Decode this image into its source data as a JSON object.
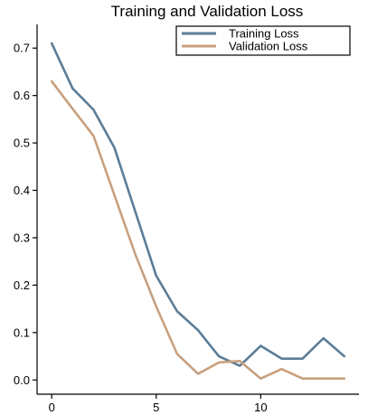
{
  "chart_data": {
    "type": "line",
    "title": "Training and Validation Loss",
    "xlabel": "",
    "ylabel": "",
    "xlim": [
      -0.7,
      14.7
    ],
    "ylim": [
      -0.03,
      0.75
    ],
    "x_ticks": [
      0,
      5,
      10
    ],
    "y_ticks": [
      0.0,
      0.1,
      0.2,
      0.3,
      0.4,
      0.5,
      0.6,
      0.7
    ],
    "grid": false,
    "legend_position": "top-right",
    "x": [
      0,
      1,
      2,
      3,
      4,
      5,
      6,
      7,
      8,
      9,
      10,
      11,
      12,
      13,
      14
    ],
    "series": [
      {
        "name": "Training Loss",
        "color": "#5b7d98",
        "values": [
          0.71,
          0.615,
          0.57,
          0.49,
          0.355,
          0.22,
          0.145,
          0.105,
          0.05,
          0.03,
          0.072,
          0.045,
          0.045,
          0.088,
          0.05
        ]
      },
      {
        "name": "Validation Loss",
        "color": "#c8a07e",
        "values": [
          0.63,
          0.572,
          0.515,
          0.39,
          0.265,
          0.155,
          0.055,
          0.013,
          0.037,
          0.04,
          0.003,
          0.023,
          0.003,
          0.003,
          0.003
        ]
      }
    ]
  }
}
